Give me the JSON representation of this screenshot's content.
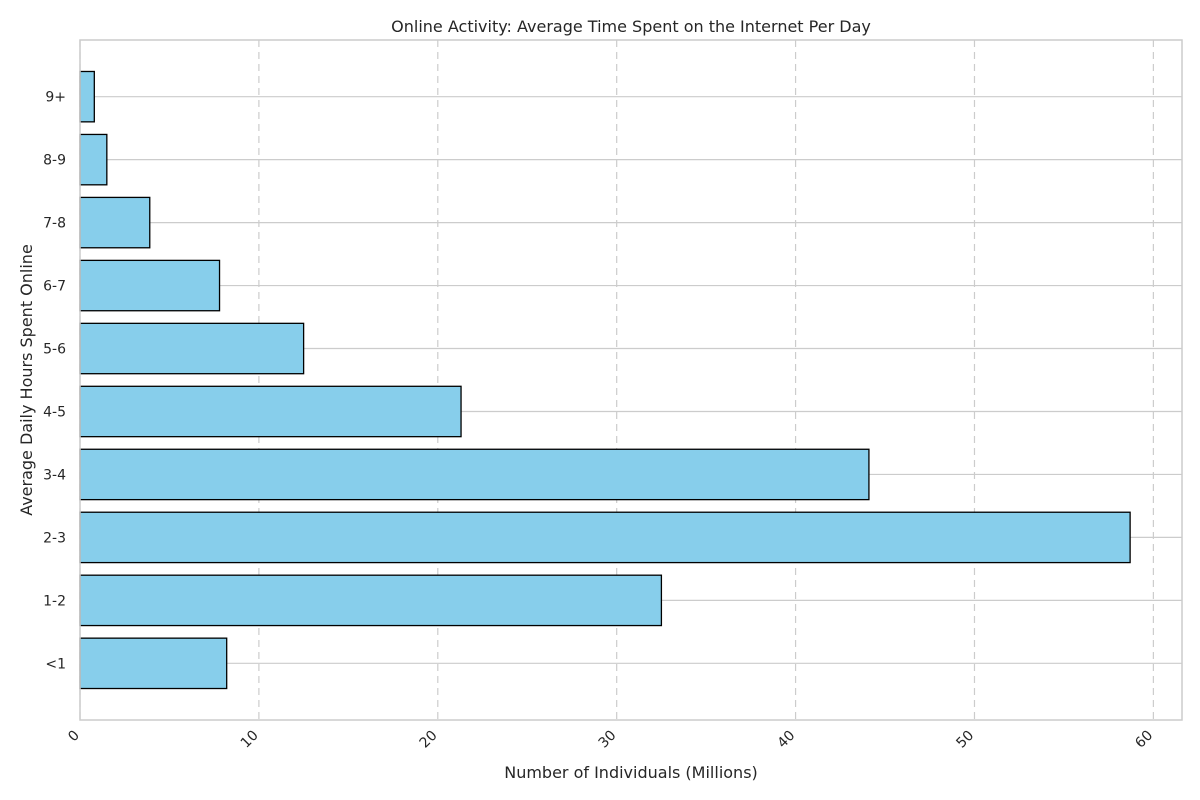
{
  "chart_data": {
    "type": "bar",
    "orientation": "horizontal",
    "title": "Online Activity: Average Time Spent on the Internet Per Day",
    "xlabel": "Number of Individuals (Millions)",
    "ylabel": "Average Daily Hours Spent Online",
    "categories": [
      "<1",
      "1-2",
      "2-3",
      "3-4",
      "4-5",
      "5-6",
      "6-7",
      "7-8",
      "8-9",
      "9+"
    ],
    "values": [
      8.2,
      32.5,
      58.7,
      44.1,
      21.3,
      12.5,
      7.8,
      3.9,
      1.5,
      0.8
    ],
    "xlim": [
      0,
      61.6
    ],
    "xticks": [
      0,
      10,
      20,
      30,
      40,
      50,
      60
    ],
    "xtick_rotation": -45,
    "bar_color": "#87CEEB",
    "bar_edge_color": "#000000",
    "grid": true,
    "vertical_grid_style": "dashed",
    "legend": "none"
  }
}
